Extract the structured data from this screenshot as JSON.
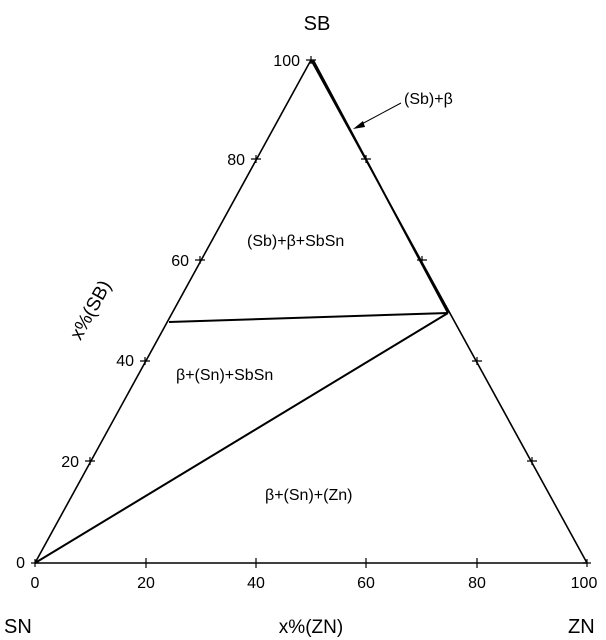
{
  "vertices": {
    "top": "SB",
    "left": "SN",
    "right": "ZN"
  },
  "axes": {
    "bottom_label": "x%(ZN)",
    "left_label": "x%(SB)"
  },
  "bottom_ticks": [
    "0",
    "20",
    "40",
    "60",
    "80",
    "100"
  ],
  "left_ticks": [
    "0",
    "20",
    "40",
    "60",
    "80",
    "100"
  ],
  "regions": {
    "top_thin": "(Sb)+β",
    "upper": "(Sb)+β+SbSn",
    "middle": "β+(Sn)+SbSn",
    "lower": "β+(Sn)+(Zn)"
  }
}
